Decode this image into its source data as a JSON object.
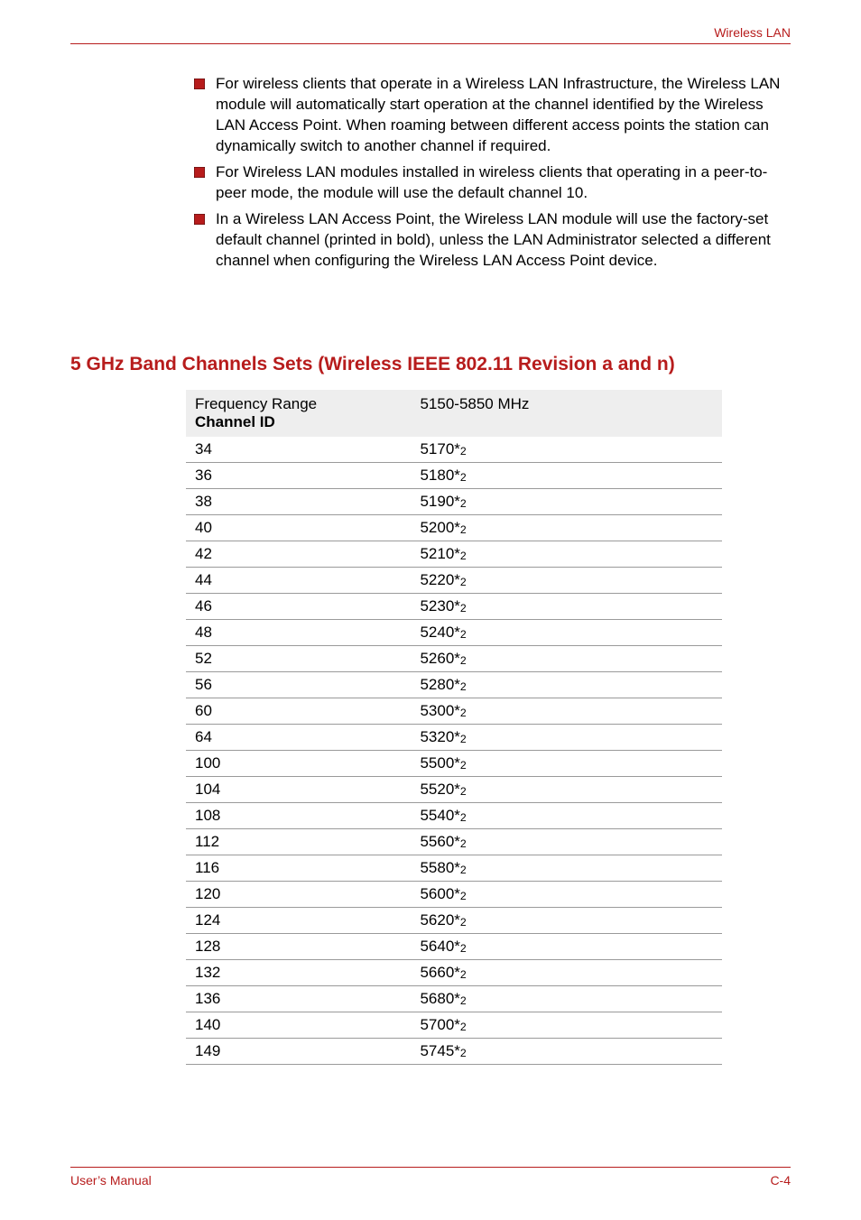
{
  "header": {
    "label": "Wireless LAN"
  },
  "bullets": [
    "For wireless clients that operate in a Wireless LAN Infrastructure, the Wireless LAN module will automatically start operation at the channel identified by the Wireless LAN Access Point. When roaming between different access points the station can dynamically switch to another channel if required.",
    "For Wireless LAN modules installed in wireless clients that operating in a peer-to-peer mode, the module will use the default channel 10.",
    "In a Wireless LAN Access Point, the Wireless LAN module will use the factory-set default channel (printed in bold), unless the LAN Administrator selected a different channel when configuring the Wireless LAN Access Point device."
  ],
  "section": {
    "heading": "5 GHz Band Channels Sets (Wireless IEEE 802.11 Revision a and n)"
  },
  "table": {
    "header_col1_line1": "Frequency Range",
    "header_col1_line2": "Channel ID",
    "header_col2": "5150-5850 MHz",
    "suffix_note": "2",
    "rows": [
      {
        "id": "34",
        "freq": "5170"
      },
      {
        "id": "36",
        "freq": "5180"
      },
      {
        "id": "38",
        "freq": "5190"
      },
      {
        "id": "40",
        "freq": "5200"
      },
      {
        "id": "42",
        "freq": "5210"
      },
      {
        "id": "44",
        "freq": "5220"
      },
      {
        "id": "46",
        "freq": "5230"
      },
      {
        "id": "48",
        "freq": "5240"
      },
      {
        "id": "52",
        "freq": "5260"
      },
      {
        "id": "56",
        "freq": "5280"
      },
      {
        "id": "60",
        "freq": "5300"
      },
      {
        "id": "64",
        "freq": "5320"
      },
      {
        "id": "100",
        "freq": "5500"
      },
      {
        "id": "104",
        "freq": "5520"
      },
      {
        "id": "108",
        "freq": "5540"
      },
      {
        "id": "112",
        "freq": "5560"
      },
      {
        "id": "116",
        "freq": "5580"
      },
      {
        "id": "120",
        "freq": "5600"
      },
      {
        "id": "124",
        "freq": "5620"
      },
      {
        "id": "128",
        "freq": "5640"
      },
      {
        "id": "132",
        "freq": "5660"
      },
      {
        "id": "136",
        "freq": "5680"
      },
      {
        "id": "140",
        "freq": "5700"
      },
      {
        "id": "149",
        "freq": "5745"
      }
    ]
  },
  "footer": {
    "left": "User’s Manual",
    "right": "C-4"
  },
  "colors": {
    "accent": "#b71c1c",
    "rule": "#9a9a9a",
    "thead_bg": "#eeeeee"
  }
}
